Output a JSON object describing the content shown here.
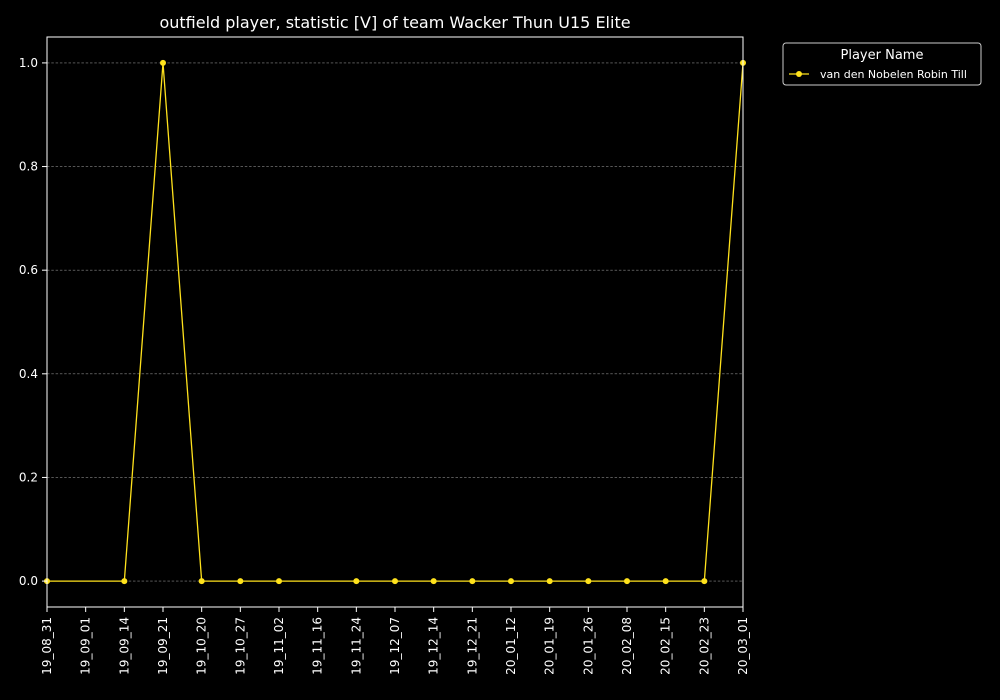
{
  "chart_data": {
    "type": "line",
    "title": "outfield player, statistic [V] of team Wacker Thun U15 Elite",
    "categories": [
      "19_08_31",
      "19_09_01",
      "19_09_14",
      "19_09_21",
      "19_10_20",
      "19_10_27",
      "19_11_02",
      "19_11_16",
      "19_11_24",
      "19_12_07",
      "19_12_14",
      "19_12_21",
      "20_01_12",
      "20_01_19",
      "20_01_26",
      "20_02_08",
      "20_02_15",
      "20_02_23",
      "20_03_01"
    ],
    "series": [
      {
        "name": "van den Nobelen Robin Till",
        "color": "#ffe21c",
        "values": [
          0,
          null,
          0,
          1,
          0,
          0,
          0,
          null,
          0,
          0,
          0,
          0,
          0,
          0,
          0,
          0,
          0,
          0,
          1
        ]
      }
    ],
    "y_ticks": [
      "0.0",
      "0.2",
      "0.4",
      "0.6",
      "0.8",
      "1.0"
    ],
    "ylim": [
      -0.05,
      1.05
    ],
    "grid": true,
    "legend": {
      "title": "Player Name",
      "placement": "outside-top-right"
    }
  }
}
